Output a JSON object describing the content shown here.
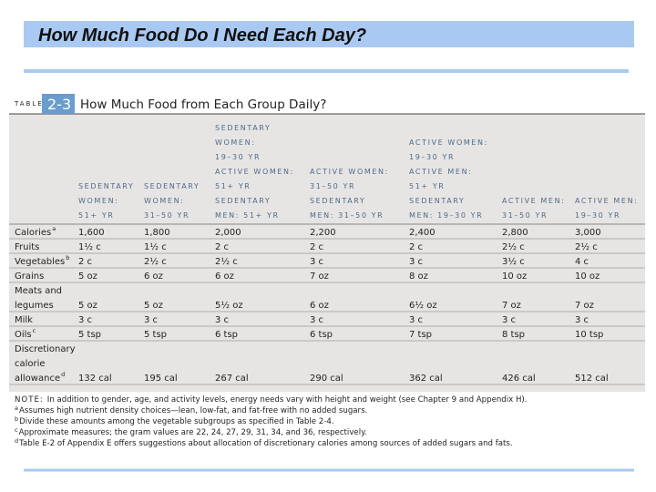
{
  "header": {
    "title": "How Much Food Do I Need Each Day?"
  },
  "table": {
    "label": "TABLE",
    "number": "2-3",
    "title": "How Much Food from Each Group Daily?",
    "columns": [
      [
        "SEDENTARY",
        "WOMEN:",
        "51+ YR"
      ],
      [
        "SEDENTARY",
        "WOMEN:",
        "31–50 YR"
      ],
      [
        "SEDENTARY",
        "WOMEN:",
        "19–30 YR",
        "ACTIVE WOMEN:",
        "51+ YR",
        "SEDENTARY",
        "MEN: 51+ YR"
      ],
      [
        "ACTIVE WOMEN:",
        "31–50 YR",
        "SEDENTARY",
        "MEN: 31–50 YR"
      ],
      [
        "ACTIVE WOMEN:",
        "19–30 YR",
        "ACTIVE MEN:",
        "51+ YR",
        "SEDENTARY",
        "MEN: 19–30 YR"
      ],
      [
        "ACTIVE MEN:",
        "31–50 YR"
      ],
      [
        "ACTIVE MEN:",
        "19–30 YR"
      ]
    ],
    "rows": [
      {
        "label": [
          "Calories"
        ],
        "sup": "a",
        "cells": [
          "1,600",
          "1,800",
          "2,000",
          "2,200",
          "2,400",
          "2,800",
          "3,000"
        ]
      },
      {
        "label": [
          "Fruits"
        ],
        "cells": [
          "1½ c",
          "1½ c",
          "2 c",
          "2 c",
          "2 c",
          "2½ c",
          "2½ c"
        ]
      },
      {
        "label": [
          "Vegetables"
        ],
        "sup": "b",
        "cells": [
          "2 c",
          "2½ c",
          "2½ c",
          "3 c",
          "3 c",
          "3½ c",
          "4 c"
        ]
      },
      {
        "label": [
          "Grains"
        ],
        "cells": [
          "5 oz",
          "6 oz",
          "6 oz",
          "7 oz",
          "8 oz",
          "10 oz",
          "10 oz"
        ]
      },
      {
        "label": [
          "Meats and",
          "legumes"
        ],
        "cells": [
          "5 oz",
          "5 oz",
          "5½ oz",
          "6 oz",
          "6½ oz",
          "7 oz",
          "7 oz"
        ]
      },
      {
        "label": [
          "Milk"
        ],
        "cells": [
          "3 c",
          "3 c",
          "3 c",
          "3 c",
          "3 c",
          "3 c",
          "3 c"
        ]
      },
      {
        "label": [
          "Oils"
        ],
        "sup": "c",
        "cells": [
          "5 tsp",
          "5 tsp",
          "6 tsp",
          "6 tsp",
          "7 tsp",
          "8 tsp",
          "10 tsp"
        ]
      },
      {
        "label": [
          "Discretionary",
          "calorie",
          "allowance"
        ],
        "sup": "d",
        "cells": [
          "132 cal",
          "195 cal",
          "267 cal",
          "290 cal",
          "362 cal",
          "426 cal",
          "512 cal"
        ]
      }
    ],
    "notes": [
      {
        "marker": "NOTE:",
        "text": "In addition to gender, age, and activity levels, energy needs vary with height and weight (see Chapter 9 and Appendix H)."
      },
      {
        "marker": "a",
        "text": "Assumes high nutrient density choices—lean, low-fat, and fat-free with no added sugars."
      },
      {
        "marker": "b",
        "text": "Divide these amounts among the vegetable subgroups as specified in Table 2-4."
      },
      {
        "marker": "c",
        "text": "Approximate measures; the gram values are 22, 24, 27, 29, 31, 34, and 36, respectively."
      },
      {
        "marker": "d",
        "text": "Table E-2 of Appendix E offers suggestions about allocation of discretionary calories among sources of added sugars and fats."
      }
    ]
  }
}
